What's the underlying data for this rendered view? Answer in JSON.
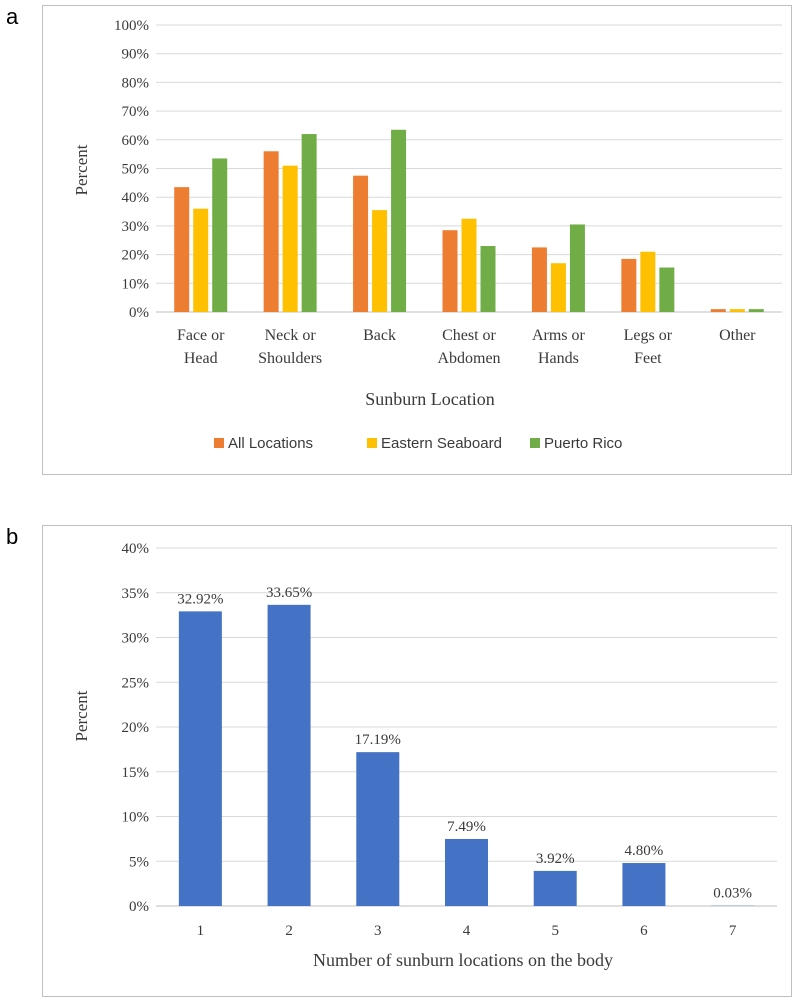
{
  "panels": [
    {
      "letter": "a"
    },
    {
      "letter": "b"
    }
  ],
  "chart_data": [
    {
      "type": "bar",
      "title": "",
      "xlabel": "Sunburn Location",
      "ylabel": "Percent",
      "ylim": [
        0,
        100
      ],
      "yticks": [
        "0%",
        "10%",
        "20%",
        "30%",
        "40%",
        "50%",
        "60%",
        "70%",
        "80%",
        "90%",
        "100%"
      ],
      "grid": true,
      "legend_position": "bottom",
      "categories": [
        [
          "Face or",
          "Head"
        ],
        [
          "Neck or",
          "Shoulders"
        ],
        [
          "Back"
        ],
        [
          "Chest or",
          "Abdomen"
        ],
        [
          "Arms or",
          "Hands"
        ],
        [
          "Legs or",
          "Feet"
        ],
        [
          "Other"
        ]
      ],
      "series": [
        {
          "name": "All Locations",
          "color": "#ED7D31",
          "values": [
            43.5,
            56,
            47.5,
            28.5,
            22.5,
            18.5,
            1
          ]
        },
        {
          "name": "Eastern Seaboard",
          "color": "#FFC000",
          "values": [
            36,
            51,
            35.5,
            32.5,
            17,
            21,
            1
          ]
        },
        {
          "name": "Puerto Rico",
          "color": "#70AD47",
          "values": [
            53.5,
            62,
            63.5,
            23,
            30.5,
            15.5,
            1
          ]
        }
      ]
    },
    {
      "type": "bar",
      "title": "",
      "xlabel": "Number of sunburn locations on the body",
      "ylabel": "Percent",
      "ylim": [
        0,
        40
      ],
      "yticks": [
        "0%",
        "5%",
        "10%",
        "15%",
        "20%",
        "25%",
        "30%",
        "35%",
        "40%"
      ],
      "grid": true,
      "categories": [
        "1",
        "2",
        "3",
        "4",
        "5",
        "6",
        "7"
      ],
      "series": [
        {
          "name": "Percent",
          "color": "#4472C4",
          "values": [
            32.92,
            33.65,
            17.19,
            7.49,
            3.92,
            4.8,
            0.03
          ]
        }
      ],
      "data_labels": [
        "32.92%",
        "33.65%",
        "17.19%",
        "7.49%",
        "3.92%",
        "4.80%",
        "0.03%"
      ]
    }
  ]
}
